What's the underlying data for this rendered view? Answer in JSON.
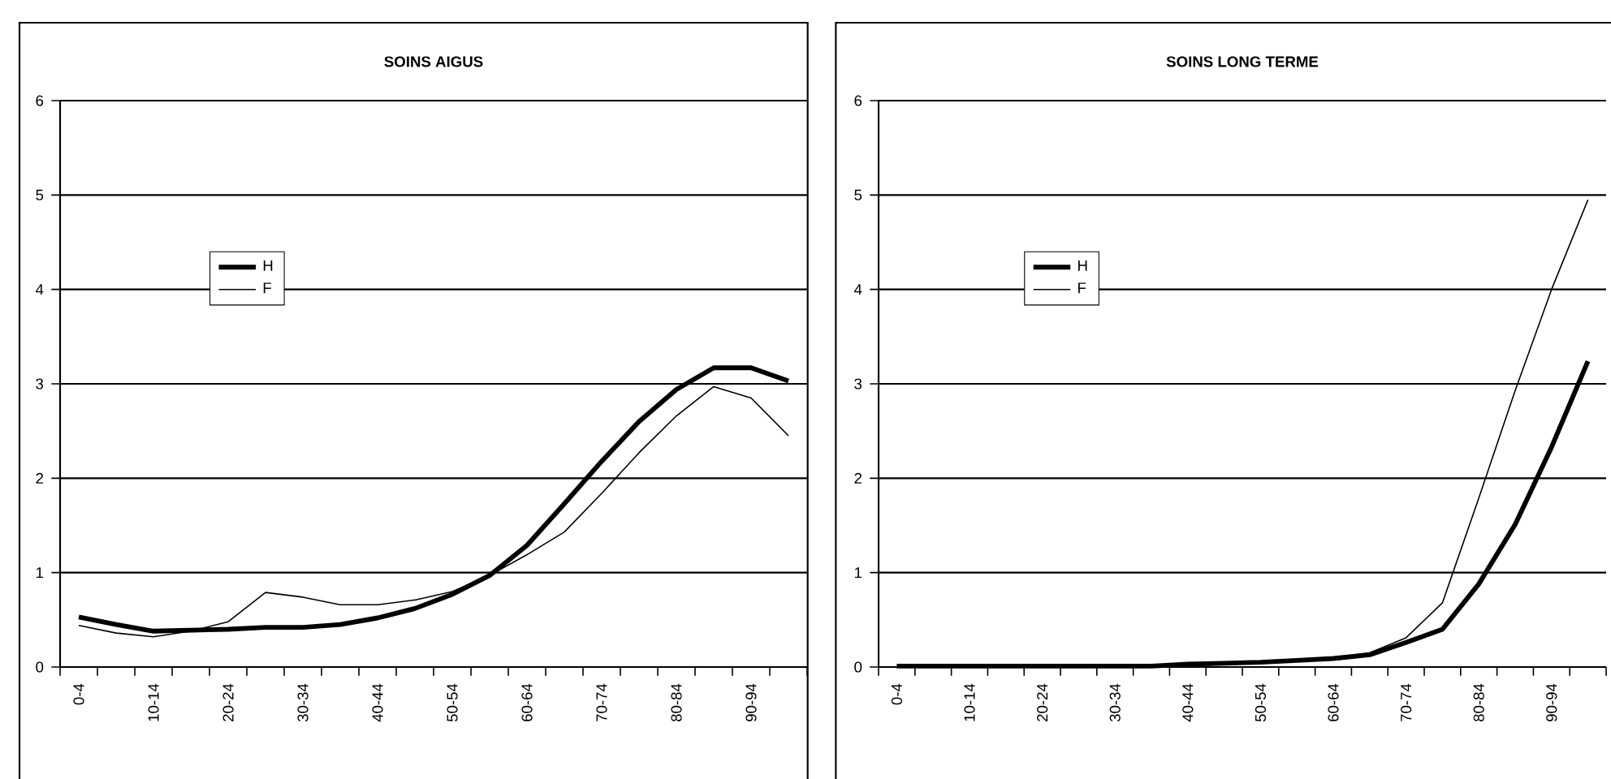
{
  "chart_data": [
    {
      "type": "line",
      "title": "SOINS AIGUS",
      "categories": [
        "0-4",
        null,
        "10-14",
        null,
        "20-24",
        null,
        "30-34",
        null,
        "40-44",
        null,
        "50-54",
        null,
        "60-64",
        null,
        "70-74",
        null,
        "80-84",
        null,
        "90-94",
        null
      ],
      "series": [
        {
          "name": "H",
          "color": "#000000",
          "values": [
            0.53,
            0.45,
            0.38,
            0.39,
            0.4,
            0.42,
            0.42,
            0.45,
            0.52,
            0.62,
            0.77,
            0.97,
            1.29,
            1.73,
            2.18,
            2.6,
            2.94,
            3.17,
            3.17,
            3.03
          ]
        },
        {
          "name": "F",
          "color": "#000000",
          "values": [
            0.44,
            0.36,
            0.32,
            0.38,
            0.48,
            0.79,
            0.74,
            0.66,
            0.66,
            0.71,
            0.8,
            0.97,
            1.19,
            1.43,
            1.84,
            2.27,
            2.66,
            2.97,
            2.85,
            2.45
          ]
        }
      ],
      "ylim": [
        0,
        6
      ],
      "yticks": [
        0,
        1,
        2,
        3,
        4,
        5,
        6
      ],
      "grid": "y",
      "legend": "left"
    },
    {
      "type": "line",
      "title": "SOINS LONG TERME",
      "categories": [
        "0-4",
        null,
        "10-14",
        null,
        "20-24",
        null,
        "30-34",
        null,
        "40-44",
        null,
        "50-54",
        null,
        "60-64",
        null,
        "70-74",
        null,
        "80-84",
        null,
        "90-94",
        null
      ],
      "series": [
        {
          "name": "H",
          "color": "#000000",
          "values": [
            0.01,
            0.01,
            0.01,
            0.01,
            0.01,
            0.01,
            0.01,
            0.01,
            0.03,
            0.04,
            0.05,
            0.07,
            0.09,
            0.13,
            0.26,
            0.4,
            0.88,
            1.51,
            2.33,
            3.24
          ]
        },
        {
          "name": "F",
          "color": "#000000",
          "values": [
            null,
            null,
            null,
            null,
            null,
            null,
            null,
            null,
            null,
            null,
            null,
            null,
            0.1,
            0.15,
            0.31,
            0.68,
            1.79,
            2.93,
            4.0,
            4.95
          ]
        }
      ],
      "ylim": [
        0,
        6
      ],
      "yticks": [
        0,
        1,
        2,
        3,
        4,
        5,
        6
      ],
      "grid": "y",
      "legend": "left"
    }
  ]
}
